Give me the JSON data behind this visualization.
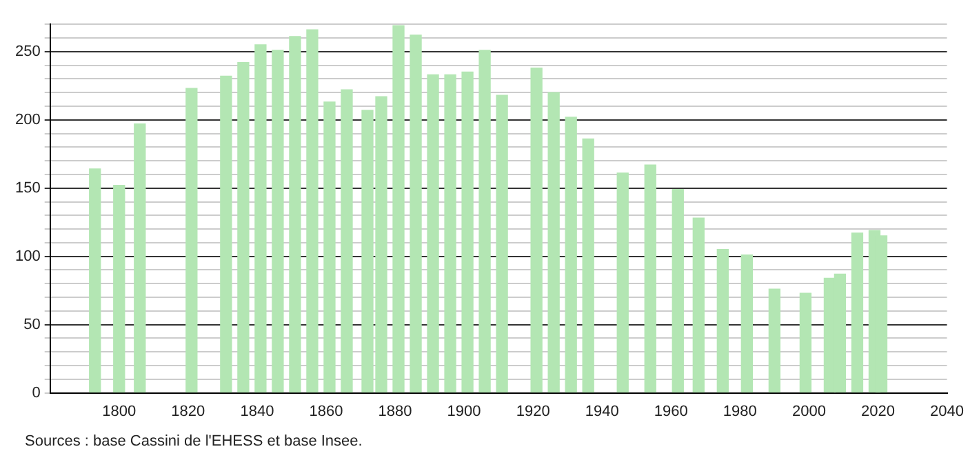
{
  "chart_data": {
    "type": "bar",
    "x": [
      1793,
      1800,
      1806,
      1821,
      1831,
      1836,
      1841,
      1846,
      1851,
      1856,
      1861,
      1866,
      1872,
      1876,
      1881,
      1886,
      1891,
      1896,
      1901,
      1906,
      1911,
      1921,
      1926,
      1931,
      1936,
      1946,
      1954,
      1962,
      1968,
      1975,
      1982,
      1990,
      1999,
      2006,
      2009,
      2014,
      2019,
      2021
    ],
    "values": [
      164,
      152,
      197,
      223,
      232,
      242,
      255,
      251,
      261,
      266,
      213,
      222,
      207,
      217,
      269,
      262,
      233,
      233,
      235,
      251,
      218,
      238,
      220,
      202,
      186,
      161,
      167,
      149,
      128,
      105,
      101,
      76,
      73,
      84,
      87,
      117,
      119,
      115
    ],
    "color": "#b3e6b3",
    "xlim": [
      1780,
      2040
    ],
    "xticks": [
      1800,
      1820,
      1840,
      1860,
      1880,
      1900,
      1920,
      1940,
      1960,
      1980,
      2000,
      2020,
      2040
    ],
    "ylim": [
      0,
      270
    ],
    "yticks": [
      0,
      {
        "value": 10,
        "label": null
      },
      {
        "value": 20,
        "label": null
      },
      {
        "value": 30,
        "label": null
      },
      {
        "value": 40,
        "label": null
      },
      50,
      {
        "value": 60,
        "label": null
      },
      {
        "value": 70,
        "label": null
      },
      {
        "value": 80,
        "label": null
      },
      {
        "value": 90,
        "label": null
      },
      100,
      {
        "value": 110,
        "label": null
      },
      {
        "value": 120,
        "label": null
      },
      {
        "value": 130,
        "label": null
      },
      {
        "value": 140,
        "label": null
      },
      150,
      {
        "value": 160,
        "label": null
      },
      {
        "value": 170,
        "label": null
      },
      {
        "value": 180,
        "label": null
      },
      {
        "value": 190,
        "label": null
      },
      200,
      {
        "value": 210,
        "label": null
      },
      {
        "value": 220,
        "label": null
      },
      {
        "value": 230,
        "label": null
      },
      {
        "value": 240,
        "label": null
      },
      250,
      {
        "value": 260,
        "label": null
      },
      {
        "value": 270,
        "label": null
      }
    ],
    "grid": "y",
    "annotations": [
      "Sources : base Cassini de l'EHESS et base Insee."
    ]
  }
}
